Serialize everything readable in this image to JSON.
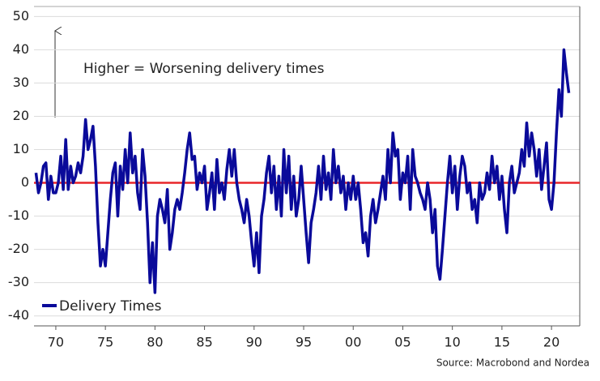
{
  "chart_data": {
    "type": "line",
    "annotation": "Higher = Worsening delivery times",
    "source": "Source: Macrobond and Nordea",
    "x": [
      1968,
      1968.25,
      1968.5,
      1968.75,
      1969,
      1969.25,
      1969.5,
      1969.75,
      1970,
      1970.25,
      1970.5,
      1970.75,
      1971,
      1971.25,
      1971.5,
      1971.75,
      1972,
      1972.25,
      1972.5,
      1972.75,
      1973,
      1973.25,
      1973.5,
      1973.75,
      1974,
      1974.25,
      1974.5,
      1974.75,
      1975,
      1975.25,
      1975.5,
      1975.75,
      1976,
      1976.25,
      1976.5,
      1976.75,
      1977,
      1977.25,
      1977.5,
      1977.75,
      1978,
      1978.25,
      1978.5,
      1978.75,
      1979,
      1979.25,
      1979.5,
      1979.75,
      1980,
      1980.25,
      1980.5,
      1980.75,
      1981,
      1981.25,
      1981.5,
      1981.75,
      1982,
      1982.25,
      1982.5,
      1982.75,
      1983,
      1983.25,
      1983.5,
      1983.75,
      1984,
      1984.25,
      1984.5,
      1984.75,
      1985,
      1985.25,
      1985.5,
      1985.75,
      1986,
      1986.25,
      1986.5,
      1986.75,
      1987,
      1987.25,
      1987.5,
      1987.75,
      1988,
      1988.25,
      1988.5,
      1988.75,
      1989,
      1989.25,
      1989.5,
      1989.75,
      1990,
      1990.25,
      1990.5,
      1990.75,
      1991,
      1991.25,
      1991.5,
      1991.75,
      1992,
      1992.25,
      1992.5,
      1992.75,
      1993,
      1993.25,
      1993.5,
      1993.75,
      1994,
      1994.25,
      1994.5,
      1994.75,
      1995,
      1995.25,
      1995.5,
      1995.75,
      1996,
      1996.25,
      1996.5,
      1996.75,
      1997,
      1997.25,
      1997.5,
      1997.75,
      1998,
      1998.25,
      1998.5,
      1998.75,
      1999,
      1999.25,
      1999.5,
      1999.75,
      2000,
      2000.25,
      2000.5,
      2000.75,
      2001,
      2001.25,
      2001.5,
      2001.75,
      2002,
      2002.25,
      2002.5,
      2002.75,
      2003,
      2003.25,
      2003.5,
      2003.75,
      2004,
      2004.25,
      2004.5,
      2004.75,
      2005,
      2005.25,
      2005.5,
      2005.75,
      2006,
      2006.25,
      2006.5,
      2006.75,
      2007,
      2007.25,
      2007.5,
      2007.75,
      2008,
      2008.25,
      2008.5,
      2008.75,
      2009,
      2009.25,
      2009.5,
      2009.75,
      2010,
      2010.25,
      2010.5,
      2010.75,
      2011,
      2011.25,
      2011.5,
      2011.75,
      2012,
      2012.25,
      2012.5,
      2012.75,
      2013,
      2013.25,
      2013.5,
      2013.75,
      2014,
      2014.25,
      2014.5,
      2014.75,
      2015,
      2015.25,
      2015.5,
      2015.75,
      2016,
      2016.25,
      2016.5,
      2016.75,
      2017,
      2017.25,
      2017.5,
      2017.75,
      2018,
      2018.25,
      2018.5,
      2018.75,
      2019,
      2019.25,
      2019.5,
      2019.75,
      2020,
      2020.25,
      2020.5,
      2020.75,
      2021,
      2021.25,
      2021.5,
      2021.75
    ],
    "series": [
      {
        "name": "Delivery Times",
        "color": "#0a0a9a",
        "values": [
          3,
          -3,
          0,
          5,
          6,
          -5,
          2,
          -3,
          -3,
          0,
          8,
          -2,
          13,
          -2,
          5,
          0,
          2,
          6,
          3,
          8,
          19,
          10,
          13,
          17,
          5,
          -12,
          -25,
          -20,
          -25,
          -15,
          -5,
          3,
          6,
          -10,
          5,
          -2,
          10,
          0,
          15,
          3,
          8,
          -3,
          -8,
          10,
          2,
          -12,
          -30,
          -18,
          -33,
          -10,
          -5,
          -8,
          -12,
          -2,
          -20,
          -15,
          -8,
          -5,
          -8,
          -3,
          3,
          10,
          15,
          7,
          8,
          -2,
          3,
          0,
          5,
          -8,
          -3,
          3,
          -8,
          7,
          -3,
          0,
          -5,
          4,
          10,
          2,
          10,
          0,
          -5,
          -8,
          -12,
          -5,
          -10,
          -18,
          -25,
          -15,
          -27,
          -10,
          -5,
          3,
          8,
          -3,
          5,
          -8,
          2,
          -10,
          10,
          -3,
          8,
          -8,
          2,
          -10,
          -5,
          5,
          -5,
          -15,
          -24,
          -12,
          -8,
          -3,
          5,
          -5,
          8,
          -2,
          3,
          -5,
          10,
          0,
          5,
          -3,
          2,
          -8,
          0,
          -5,
          2,
          -5,
          0,
          -8,
          -18,
          -15,
          -22,
          -10,
          -5,
          -12,
          -8,
          -3,
          2,
          -5,
          10,
          0,
          15,
          8,
          10,
          -5,
          3,
          0,
          8,
          -8,
          10,
          2,
          0,
          -3,
          -5,
          -8,
          0,
          -5,
          -15,
          -8,
          -25,
          -29,
          -20,
          -10,
          0,
          8,
          -3,
          5,
          -8,
          2,
          8,
          5,
          -3,
          0,
          -8,
          -5,
          -12,
          0,
          -5,
          -3,
          3,
          -2,
          8,
          0,
          5,
          -5,
          2,
          -8,
          -15,
          0,
          5,
          -3,
          0,
          3,
          10,
          5,
          18,
          8,
          15,
          10,
          2,
          10,
          -2,
          5,
          12,
          -5,
          -8,
          0,
          15,
          28,
          20,
          40,
          33,
          27
        ]
      }
    ],
    "hline": 0,
    "hline_color": "#e8262a",
    "xlim": [
      1967.8,
      2022.85
    ],
    "ylim": [
      -43,
      53
    ],
    "xticks": [
      {
        "value": 1970,
        "label": "70"
      },
      {
        "value": 1975,
        "label": "75"
      },
      {
        "value": 1980,
        "label": "80"
      },
      {
        "value": 1985,
        "label": "85"
      },
      {
        "value": 1990,
        "label": "90"
      },
      {
        "value": 1995,
        "label": "95"
      },
      {
        "value": 2000,
        "label": "00"
      },
      {
        "value": 2005,
        "label": "05"
      },
      {
        "value": 2010,
        "label": "10"
      },
      {
        "value": 2015,
        "label": "15"
      },
      {
        "value": 2020,
        "label": "20"
      }
    ],
    "yticks": [
      -40,
      -30,
      -20,
      -10,
      0,
      10,
      20,
      30,
      40,
      50
    ],
    "grid": true
  }
}
